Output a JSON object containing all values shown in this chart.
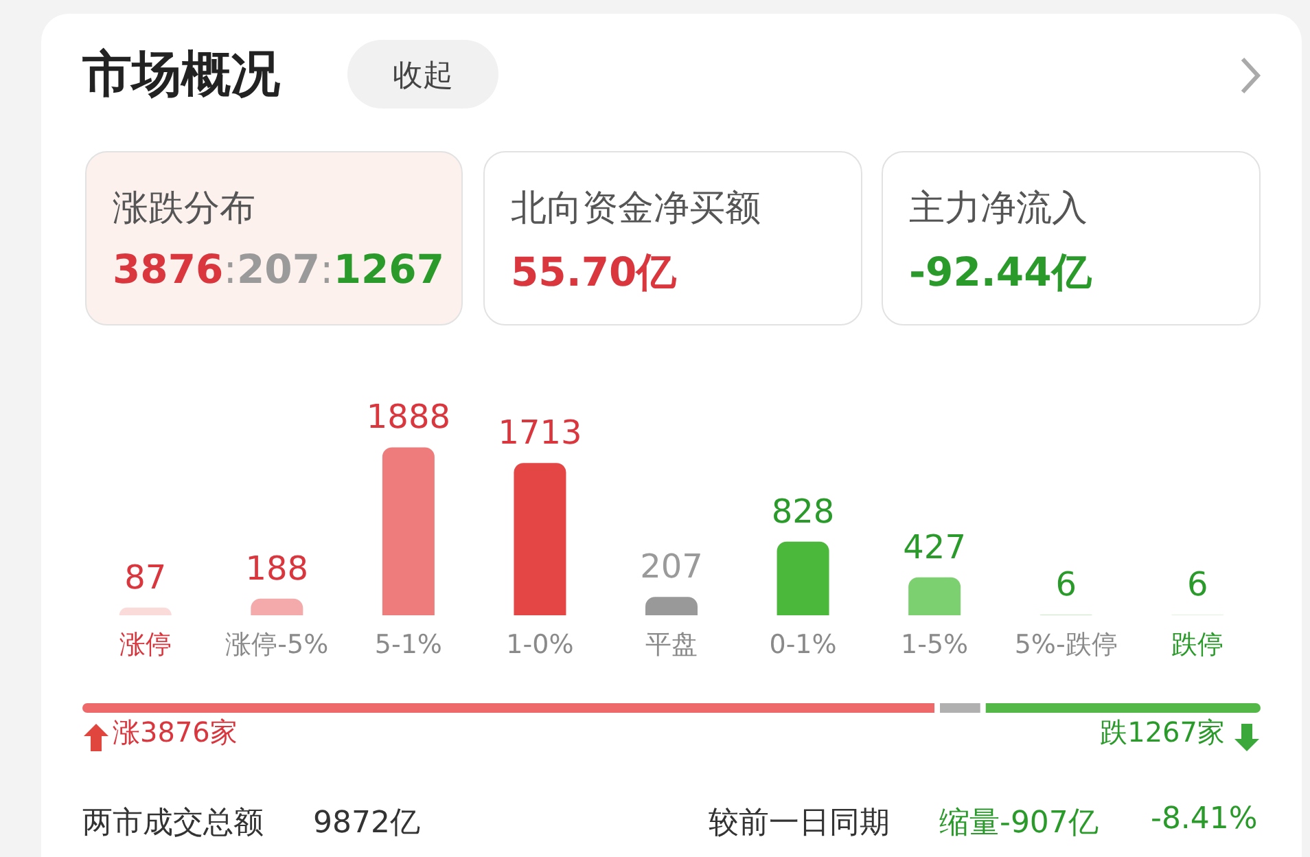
{
  "chart_data": [
    {
      "type": "bar",
      "title": "市场概况",
      "annotations": [
        "收起",
        "涨跌分布",
        "3876:207:1267",
        "北向资金净买额",
        "55.70亿",
        "主力净流入",
        "-92.44亿"
      ],
      "categories": [
        "涨停",
        "涨停-5%",
        "5-1%",
        "1-0%",
        "平盘",
        "0-1%",
        "1-5%",
        "5%-跌停",
        "跌停"
      ],
      "values": [
        87,
        188,
        1888,
        1713,
        207,
        828,
        427,
        6,
        6
      ],
      "colors": [
        "#fbdada",
        "#f4aaaa",
        "#ee7c7c",
        "#e44545",
        "#999999",
        "#4cb83b",
        "#7dd06f",
        "#b7e4ae",
        "#d7f0d1"
      ],
      "data_labels": true
    },
    {
      "type": "bar",
      "orientation": "horizontal",
      "stacked": true,
      "categories": [
        null
      ],
      "series": [
        {
          "color": "#ee6a6a",
          "values": [
            3876
          ],
          "value_labels": [
            "涨3876家"
          ]
        },
        {
          "color": "#b0b0b0",
          "values": [
            207
          ],
          "value_labels": [
            null
          ]
        },
        {
          "color": "#54b848",
          "values": [
            1267
          ],
          "value_labels": [
            "跌1267家"
          ]
        }
      ],
      "annotations": [
        "两市成交总额",
        "9872亿",
        "较前一日同期",
        "缩量-907亿",
        "-8.41%"
      ]
    }
  ]
}
